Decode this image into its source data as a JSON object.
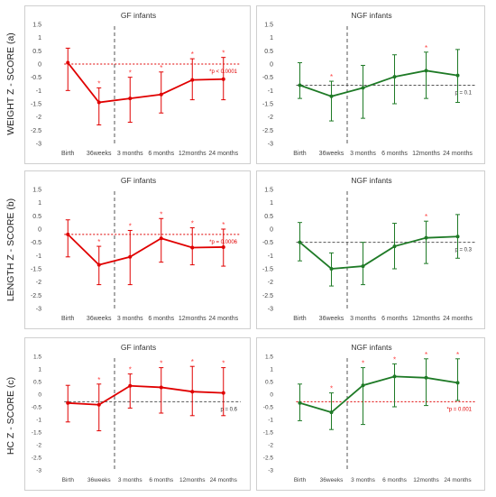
{
  "row_labels": [
    "WEIGHT Z - SCORE  (a)",
    "LENGTH Z - SCORE  (b)",
    "HC Z - SCORE  (c)"
  ],
  "colors": {
    "gf": "#e00000",
    "ngf": "#1e7a26",
    "dashed": "#555555",
    "star": "#ff4040"
  },
  "chart_data": [
    {
      "type": "line",
      "title": "GF infants",
      "color": "#e00000",
      "ylim": [
        -3,
        1.5
      ],
      "categories": [
        "Birth",
        "36weeks",
        "3 months",
        "6 months",
        "12months",
        "24 months"
      ],
      "values": [
        0.05,
        -1.45,
        -1.3,
        -1.15,
        -0.6,
        -0.57
      ],
      "err_low": [
        -1.0,
        -2.3,
        -2.2,
        -1.85,
        -1.35,
        -1.35
      ],
      "err_high": [
        0.6,
        -0.9,
        -0.5,
        -0.3,
        0.2,
        0.25
      ],
      "stars": [
        "",
        "*",
        "*",
        "*",
        "*",
        "*"
      ],
      "ref_line": 0.0,
      "ref_color": "#e00000",
      "p_label": "*p < 0.0001"
    },
    {
      "type": "line",
      "title": "NGF infants",
      "color": "#1e7a26",
      "ylim": [
        -3,
        1.5
      ],
      "categories": [
        "Birth",
        "36weeks",
        "3 months",
        "6 months",
        "12months",
        "24 months"
      ],
      "values": [
        -0.8,
        -1.22,
        -0.9,
        -0.48,
        -0.25,
        -0.43
      ],
      "err_low": [
        -1.3,
        -2.15,
        -2.05,
        -1.5,
        -1.3,
        -1.45
      ],
      "err_high": [
        0.05,
        -0.65,
        -0.05,
        0.35,
        0.45,
        0.55
      ],
      "stars": [
        "",
        "*",
        "",
        "",
        "*",
        ""
      ],
      "ref_line": -0.8,
      "ref_color": "#555555",
      "p_label": "p = 0.1"
    },
    {
      "type": "line",
      "title": "GF infants",
      "color": "#e00000",
      "ylim": [
        -3,
        1.5
      ],
      "categories": [
        "Birth",
        "36weeks",
        "3 months",
        "6 months",
        "12months",
        "24 months"
      ],
      "values": [
        -0.2,
        -1.35,
        -1.05,
        -0.35,
        -0.7,
        -0.68
      ],
      "err_low": [
        -1.05,
        -2.1,
        -2.1,
        -1.25,
        -1.35,
        -1.4
      ],
      "err_high": [
        0.35,
        -0.65,
        -0.05,
        0.4,
        0.05,
        0.0
      ],
      "stars": [
        "",
        "*",
        "*",
        "*",
        "*",
        "*"
      ],
      "ref_line": -0.2,
      "ref_color": "#e00000",
      "p_label": "*p = 0.0006"
    },
    {
      "type": "line",
      "title": "NGF infants",
      "color": "#1e7a26",
      "ylim": [
        -3,
        1.5
      ],
      "categories": [
        "Birth",
        "36weeks",
        "3 months",
        "6 months",
        "12months",
        "24 months"
      ],
      "values": [
        -0.5,
        -1.5,
        -1.4,
        -0.65,
        -0.33,
        -0.28
      ],
      "err_low": [
        -1.2,
        -2.15,
        -2.1,
        -1.5,
        -1.3,
        -1.1
      ],
      "err_high": [
        0.25,
        -0.9,
        -0.5,
        0.22,
        0.3,
        0.55
      ],
      "stars": [
        "",
        "",
        "",
        "",
        "*",
        ""
      ],
      "ref_line": -0.5,
      "ref_color": "#555555",
      "p_label": "p = 0.3"
    },
    {
      "type": "line",
      "title": "GF infants",
      "color": "#e00000",
      "ylim": [
        -3,
        1.5
      ],
      "categories": [
        "Birth",
        "36weeks",
        "3 months",
        "6 months",
        "12months",
        "24 months"
      ],
      "values": [
        -0.35,
        -0.42,
        0.33,
        0.27,
        0.1,
        0.05
      ],
      "err_low": [
        -1.1,
        -1.45,
        -0.55,
        -0.75,
        -0.85,
        -0.85
      ],
      "err_high": [
        0.35,
        0.4,
        0.8,
        1.05,
        1.1,
        1.05
      ],
      "stars": [
        "",
        "*",
        "*",
        "*",
        "*",
        "*"
      ],
      "ref_line": -0.3,
      "ref_color": "#555555",
      "p_label": "p = 0.6"
    },
    {
      "type": "line",
      "title": "NGF infants",
      "color": "#1e7a26",
      "ylim": [
        -3,
        1.5
      ],
      "categories": [
        "Birth",
        "36weeks",
        "3 months",
        "6 months",
        "12months",
        "24 months"
      ],
      "values": [
        -0.35,
        -0.72,
        0.35,
        0.7,
        0.65,
        0.45
      ],
      "err_low": [
        -1.05,
        -1.4,
        -1.2,
        -0.5,
        -0.45,
        -0.25
      ],
      "err_high": [
        0.4,
        0.05,
        1.05,
        1.2,
        1.4,
        1.4
      ],
      "stars": [
        "",
        "*",
        "*",
        "*",
        "*",
        "*"
      ],
      "ref_line": -0.3,
      "ref_color": "#e00000",
      "p_label": "*p = 0.001"
    }
  ]
}
